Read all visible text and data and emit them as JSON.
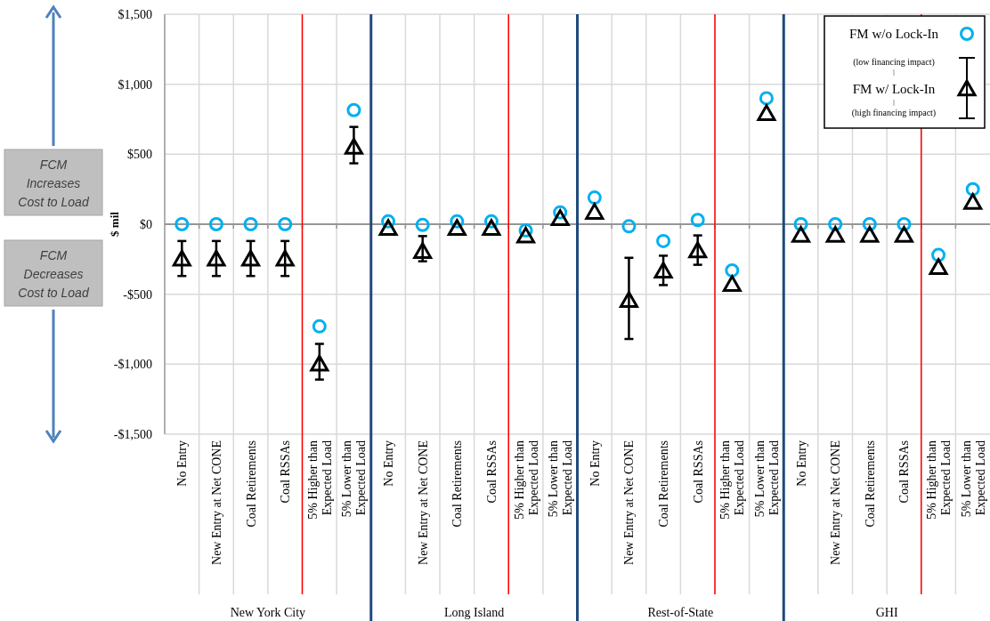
{
  "chart_data": {
    "type": "scatter",
    "categories": [
      "No Entry",
      "New Entry at Net CONE",
      "Coal Retirements",
      "Coal RSSAs",
      "5% Higher than Expected Load",
      "5% Lower than Expected Load",
      "No Entry",
      "New Entry at Net CONE",
      "Coal Retirements",
      "Coal RSSAs",
      "5% Higher than Expected Load",
      "5% Lower than Expected Load",
      "No Entry",
      "New Entry at Net CONE",
      "Coal Retirements",
      "Coal RSSAs",
      "5% Higher than Expected Load",
      "5% Lower than Expected Load",
      "No Entry",
      "New Entry at Net CONE",
      "Coal Retirements",
      "Coal RSSAs",
      "5% Higher than Expected Load",
      "5% Lower than Expected Load"
    ],
    "series": [
      {
        "name": "FM w/o Lock-In",
        "color": "#00b0f0",
        "marker": "circle",
        "values": [
          0,
          0,
          0,
          0,
          -730,
          815,
          20,
          -5,
          20,
          20,
          -45,
          85,
          190,
          -15,
          -120,
          30,
          -330,
          900,
          0,
          0,
          0,
          0,
          -220,
          250
        ]
      },
      {
        "name": "FM w/ Lock-In",
        "color": "#000000",
        "marker": "triangle",
        "values": [
          -250,
          -250,
          -250,
          -250,
          -1000,
          550,
          -30,
          -195,
          -30,
          -30,
          -85,
          40,
          85,
          -545,
          -335,
          -190,
          -430,
          790,
          -80,
          -80,
          -80,
          -80,
          -310,
          155
        ],
        "errors": [
          [
            -370,
            -120
          ],
          [
            -370,
            -120
          ],
          [
            -370,
            -120
          ],
          [
            -370,
            -120
          ],
          [
            -1110,
            -855
          ],
          [
            435,
            695
          ],
          null,
          [
            -265,
            -85
          ],
          null,
          null,
          null,
          null,
          null,
          [
            -820,
            -240
          ],
          [
            -435,
            -225
          ],
          [
            -290,
            -80
          ],
          null,
          null,
          null,
          null,
          null,
          null,
          null,
          null
        ]
      }
    ],
    "ylabel": "$ mil",
    "ylim": [
      -1500,
      1500
    ],
    "yticks": [
      {
        "value": -1500,
        "label": "-$1,500"
      },
      {
        "value": -1000,
        "label": "-$1,000"
      },
      {
        "value": -500,
        "label": "-$500"
      },
      {
        "value": 0,
        "label": "$0"
      },
      {
        "value": 500,
        "label": "$500"
      },
      {
        "value": 1000,
        "label": "$1,000"
      },
      {
        "value": 1500,
        "label": "$1,500"
      }
    ],
    "grid": true,
    "legend": "top right",
    "annotations": [
      "FCM\nIncreases\nCost to Load",
      "FCM\nDecreases\nCost to Load",
      "(low financing impact)",
      "(high financing impact)",
      "New York City",
      "Long Island",
      "Rest-of-State",
      "GHI"
    ]
  }
}
